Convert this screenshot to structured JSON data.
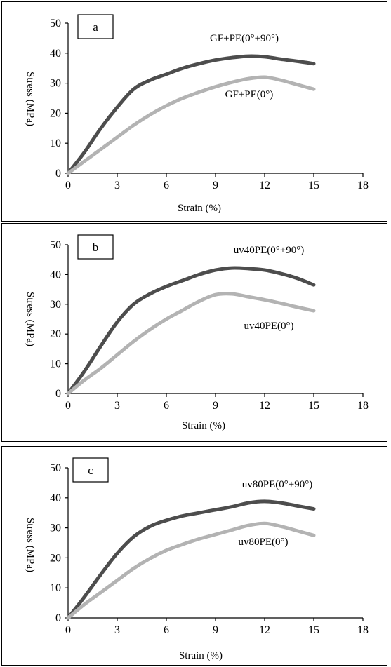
{
  "chart_data": [
    {
      "type": "line",
      "panel_label": "a",
      "xlabel": "Strain (%)",
      "ylabel": "Stress (MPa)",
      "xlim": [
        0,
        18
      ],
      "ylim": [
        0,
        50
      ],
      "xticks": [
        "0",
        "3",
        "6",
        "9",
        "12",
        "15",
        "18"
      ],
      "yticks": [
        "0",
        "10",
        "20",
        "30",
        "40",
        "50"
      ],
      "grid": false,
      "series": [
        {
          "name": "GF+PE(0°+90°)",
          "color": "#4d4d4d",
          "points": [
            [
              0,
              0
            ],
            [
              1,
              7
            ],
            [
              2,
              15
            ],
            [
              3,
              22
            ],
            [
              4,
              28
            ],
            [
              5,
              31
            ],
            [
              6,
              33
            ],
            [
              7,
              35
            ],
            [
              8,
              36.5
            ],
            [
              9,
              37.7
            ],
            [
              10,
              38.5
            ],
            [
              11,
              39
            ],
            [
              12,
              38.8
            ],
            [
              13,
              38
            ],
            [
              14,
              37.3
            ],
            [
              15,
              36.5
            ]
          ]
        },
        {
          "name": "GF+PE(0°)",
          "color": "#b3b3b3",
          "points": [
            [
              0,
              0
            ],
            [
              1,
              4
            ],
            [
              2,
              8
            ],
            [
              3,
              12
            ],
            [
              4,
              16
            ],
            [
              5,
              19.5
            ],
            [
              6,
              22.5
            ],
            [
              7,
              25
            ],
            [
              8,
              27
            ],
            [
              9,
              28.8
            ],
            [
              10,
              30.3
            ],
            [
              11,
              31.5
            ],
            [
              12,
              32
            ],
            [
              13,
              31
            ],
            [
              14,
              29.5
            ],
            [
              15,
              28
            ]
          ]
        }
      ]
    },
    {
      "type": "line",
      "panel_label": "b",
      "xlabel": "Strain (%)",
      "ylabel": "Stress (MPa)",
      "xlim": [
        0,
        18
      ],
      "ylim": [
        0,
        50
      ],
      "xticks": [
        "0",
        "3",
        "6",
        "9",
        "12",
        "15",
        "18"
      ],
      "yticks": [
        "0",
        "10",
        "20",
        "30",
        "40",
        "50"
      ],
      "grid": false,
      "series": [
        {
          "name": "uv40PE(0°+90°)",
          "color": "#4d4d4d",
          "points": [
            [
              0,
              0
            ],
            [
              1,
              7.5
            ],
            [
              2,
              16
            ],
            [
              3,
              24
            ],
            [
              4,
              30
            ],
            [
              5,
              33.5
            ],
            [
              6,
              36
            ],
            [
              7,
              38
            ],
            [
              8,
              40
            ],
            [
              9,
              41.5
            ],
            [
              10,
              42.2
            ],
            [
              11,
              42
            ],
            [
              12,
              41.5
            ],
            [
              13,
              40.3
            ],
            [
              14,
              38.7
            ],
            [
              15,
              36.5
            ]
          ]
        },
        {
          "name": "uv40PE(0°)",
          "color": "#b3b3b3",
          "points": [
            [
              0,
              0
            ],
            [
              1,
              4.5
            ],
            [
              2,
              8.5
            ],
            [
              3,
              13
            ],
            [
              4,
              17.5
            ],
            [
              5,
              21.5
            ],
            [
              6,
              25
            ],
            [
              7,
              28
            ],
            [
              8,
              31
            ],
            [
              9,
              33.2
            ],
            [
              10,
              33.5
            ],
            [
              11,
              32.5
            ],
            [
              12,
              31.5
            ],
            [
              13,
              30.3
            ],
            [
              14,
              29
            ],
            [
              15,
              27.8
            ]
          ]
        }
      ]
    },
    {
      "type": "line",
      "panel_label": "c",
      "xlabel": "Strain (%)",
      "ylabel": "Stress (MPa)",
      "xlim": [
        0,
        18
      ],
      "ylim": [
        0,
        50
      ],
      "xticks": [
        "0",
        "3",
        "6",
        "9",
        "12",
        "15",
        "18"
      ],
      "yticks": [
        "0",
        "10",
        "20",
        "30",
        "40",
        "50"
      ],
      "grid": false,
      "series": [
        {
          "name": "uv80PE(0°+90°)",
          "color": "#4d4d4d",
          "points": [
            [
              0,
              0
            ],
            [
              1,
              7
            ],
            [
              2,
              14.5
            ],
            [
              3,
              21.5
            ],
            [
              4,
              27
            ],
            [
              5,
              30.5
            ],
            [
              6,
              32.5
            ],
            [
              7,
              34
            ],
            [
              8,
              35
            ],
            [
              9,
              36
            ],
            [
              10,
              37
            ],
            [
              11,
              38.3
            ],
            [
              12,
              38.8
            ],
            [
              13,
              38.3
            ],
            [
              14,
              37.3
            ],
            [
              15,
              36.3
            ]
          ]
        },
        {
          "name": "uv80PE(0°)",
          "color": "#b3b3b3",
          "points": [
            [
              0,
              0
            ],
            [
              1,
              4.5
            ],
            [
              2,
              8.5
            ],
            [
              3,
              12.5
            ],
            [
              4,
              16.5
            ],
            [
              5,
              19.8
            ],
            [
              6,
              22.5
            ],
            [
              7,
              24.5
            ],
            [
              8,
              26.3
            ],
            [
              9,
              27.8
            ],
            [
              10,
              29.3
            ],
            [
              11,
              30.8
            ],
            [
              12,
              31.5
            ],
            [
              13,
              30.5
            ],
            [
              14,
              29
            ],
            [
              15,
              27.5
            ]
          ]
        }
      ]
    }
  ]
}
